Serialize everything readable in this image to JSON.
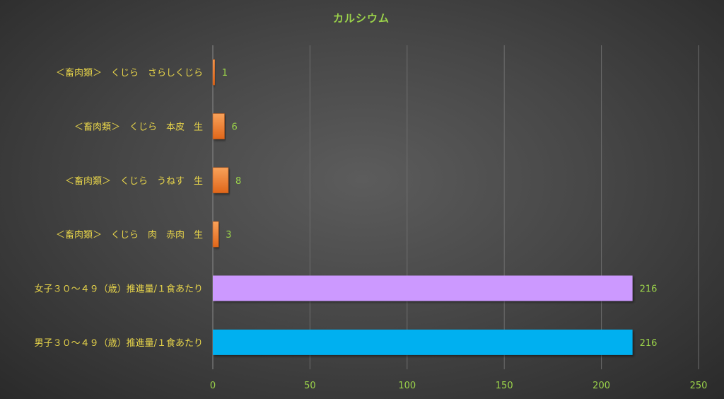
{
  "chart_data": {
    "type": "bar",
    "orientation": "horizontal",
    "title": "カルシウム",
    "categories": [
      "＜畜肉類＞　くじら　さらしくじら",
      "＜畜肉類＞　くじら　本皮　生",
      "＜畜肉類＞　くじら　うねす　生",
      "＜畜肉類＞　くじら　肉　赤肉　生",
      "女子３０～４９（歳）推進量/１食あたり",
      "男子３０～４９（歳）推進量/１食あたり"
    ],
    "values": [
      1,
      6,
      8,
      3,
      216,
      216
    ],
    "data_labels": [
      "1",
      "6",
      "8",
      "3",
      "216",
      "216"
    ],
    "bar_colors": [
      "#f07f2a",
      "#f07f2a",
      "#f07f2a",
      "#f07f2a",
      "#cc99ff",
      "#00b0f0"
    ],
    "x_ticks": [
      "0",
      "50",
      "100",
      "150",
      "200",
      "250"
    ],
    "xlim": [
      0,
      250
    ],
    "grid": "vertical",
    "legend": "none"
  }
}
